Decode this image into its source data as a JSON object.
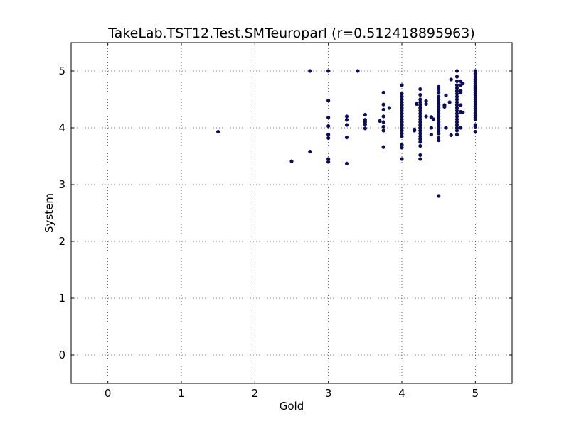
{
  "chart_data": {
    "type": "scatter",
    "title": "TakeLab.TST12.Test.SMTeuroparl (r=0.512418895963)",
    "xlabel": "Gold",
    "ylabel": "System",
    "xlim": [
      -0.5,
      5.5
    ],
    "ylim": [
      -0.5,
      5.5
    ],
    "xticks": [
      0,
      1,
      2,
      3,
      4,
      5
    ],
    "yticks": [
      0,
      1,
      2,
      3,
      4,
      5
    ],
    "xtick_labels": [
      "0",
      "1",
      "2",
      "3",
      "4",
      "5"
    ],
    "ytick_labels": [
      "0",
      "1",
      "2",
      "3",
      "4",
      "5"
    ],
    "grid": true,
    "marker_color": "#0b0b6e",
    "points": [
      [
        1.5,
        3.93
      ],
      [
        2.5,
        3.41
      ],
      [
        2.75,
        3.58
      ],
      [
        2.75,
        5.0
      ],
      [
        3.0,
        5.0
      ],
      [
        3.0,
        4.48
      ],
      [
        3.0,
        4.18
      ],
      [
        3.0,
        4.03
      ],
      [
        3.0,
        3.88
      ],
      [
        3.0,
        3.82
      ],
      [
        3.0,
        3.45
      ],
      [
        3.0,
        3.4
      ],
      [
        3.25,
        4.2
      ],
      [
        3.25,
        4.14
      ],
      [
        3.25,
        4.05
      ],
      [
        3.25,
        3.83
      ],
      [
        3.25,
        3.37
      ],
      [
        3.4,
        5.0
      ],
      [
        3.5,
        4.23
      ],
      [
        3.5,
        4.14
      ],
      [
        3.5,
        4.1
      ],
      [
        3.5,
        4.06
      ],
      [
        3.5,
        3.99
      ],
      [
        3.7,
        4.12
      ],
      [
        3.75,
        4.62
      ],
      [
        3.75,
        4.41
      ],
      [
        3.75,
        4.32
      ],
      [
        3.75,
        4.2
      ],
      [
        3.75,
        4.1
      ],
      [
        3.75,
        4.02
      ],
      [
        3.75,
        3.95
      ],
      [
        3.75,
        3.66
      ],
      [
        3.83,
        4.35
      ],
      [
        4.0,
        4.75
      ],
      [
        4.0,
        4.6
      ],
      [
        4.0,
        4.55
      ],
      [
        4.0,
        4.5
      ],
      [
        4.0,
        4.45
      ],
      [
        4.0,
        4.4
      ],
      [
        4.0,
        4.35
      ],
      [
        4.0,
        4.3
      ],
      [
        4.0,
        4.25
      ],
      [
        4.0,
        4.2
      ],
      [
        4.0,
        4.15
      ],
      [
        4.0,
        4.1
      ],
      [
        4.0,
        4.05
      ],
      [
        4.0,
        4.0
      ],
      [
        4.0,
        3.95
      ],
      [
        4.0,
        3.9
      ],
      [
        4.0,
        3.85
      ],
      [
        4.0,
        3.7
      ],
      [
        4.0,
        3.65
      ],
      [
        4.0,
        3.45
      ],
      [
        4.17,
        3.97
      ],
      [
        4.17,
        3.95
      ],
      [
        4.2,
        4.42
      ],
      [
        4.25,
        4.68
      ],
      [
        4.25,
        4.58
      ],
      [
        4.25,
        4.5
      ],
      [
        4.25,
        4.45
      ],
      [
        4.25,
        4.4
      ],
      [
        4.25,
        4.35
      ],
      [
        4.25,
        4.3
      ],
      [
        4.25,
        4.25
      ],
      [
        4.25,
        4.2
      ],
      [
        4.25,
        4.15
      ],
      [
        4.25,
        4.1
      ],
      [
        4.25,
        4.05
      ],
      [
        4.25,
        4.0
      ],
      [
        4.25,
        3.95
      ],
      [
        4.25,
        3.9
      ],
      [
        4.25,
        3.85
      ],
      [
        4.25,
        3.8
      ],
      [
        4.25,
        3.75
      ],
      [
        4.25,
        3.68
      ],
      [
        4.25,
        3.52
      ],
      [
        4.25,
        3.45
      ],
      [
        4.33,
        4.47
      ],
      [
        4.33,
        4.42
      ],
      [
        4.33,
        4.2
      ],
      [
        4.4,
        4.19
      ],
      [
        4.4,
        4.0
      ],
      [
        4.4,
        3.88
      ],
      [
        4.43,
        4.15
      ],
      [
        4.5,
        4.72
      ],
      [
        4.5,
        4.68
      ],
      [
        4.5,
        4.62
      ],
      [
        4.5,
        4.55
      ],
      [
        4.5,
        4.5
      ],
      [
        4.5,
        4.45
      ],
      [
        4.5,
        4.4
      ],
      [
        4.5,
        4.35
      ],
      [
        4.5,
        4.3
      ],
      [
        4.5,
        4.25
      ],
      [
        4.5,
        4.2
      ],
      [
        4.5,
        4.15
      ],
      [
        4.5,
        4.1
      ],
      [
        4.5,
        4.05
      ],
      [
        4.5,
        4.0
      ],
      [
        4.5,
        3.95
      ],
      [
        4.5,
        3.9
      ],
      [
        4.5,
        3.82
      ],
      [
        4.5,
        3.78
      ],
      [
        4.5,
        2.8
      ],
      [
        4.58,
        4.4
      ],
      [
        4.58,
        4.37
      ],
      [
        4.6,
        4.57
      ],
      [
        4.6,
        4.0
      ],
      [
        4.65,
        4.45
      ],
      [
        4.67,
        4.85
      ],
      [
        4.67,
        3.87
      ],
      [
        4.75,
        5.0
      ],
      [
        4.75,
        4.9
      ],
      [
        4.75,
        4.82
      ],
      [
        4.75,
        4.75
      ],
      [
        4.75,
        4.7
      ],
      [
        4.75,
        4.65
      ],
      [
        4.75,
        4.6
      ],
      [
        4.75,
        4.55
      ],
      [
        4.75,
        4.5
      ],
      [
        4.75,
        4.45
      ],
      [
        4.75,
        4.4
      ],
      [
        4.75,
        4.35
      ],
      [
        4.75,
        4.3
      ],
      [
        4.75,
        4.25
      ],
      [
        4.75,
        4.2
      ],
      [
        4.75,
        4.15
      ],
      [
        4.75,
        4.1
      ],
      [
        4.75,
        4.05
      ],
      [
        4.75,
        4.0
      ],
      [
        4.75,
        3.95
      ],
      [
        4.75,
        3.88
      ],
      [
        4.8,
        4.82
      ],
      [
        4.8,
        4.75
      ],
      [
        4.8,
        4.65
      ],
      [
        4.8,
        4.62
      ],
      [
        4.8,
        4.4
      ],
      [
        4.8,
        4.28
      ],
      [
        4.8,
        4.0
      ],
      [
        4.83,
        4.78
      ],
      [
        4.83,
        4.27
      ],
      [
        5.0,
        5.0
      ],
      [
        5.0,
        4.98
      ],
      [
        5.0,
        4.95
      ],
      [
        5.0,
        4.9
      ],
      [
        5.0,
        4.86
      ],
      [
        5.0,
        4.82
      ],
      [
        5.0,
        4.78
      ],
      [
        5.0,
        4.74
      ],
      [
        5.0,
        4.7
      ],
      [
        5.0,
        4.66
      ],
      [
        5.0,
        4.62
      ],
      [
        5.0,
        4.58
      ],
      [
        5.0,
        4.54
      ],
      [
        5.0,
        4.5
      ],
      [
        5.0,
        4.46
      ],
      [
        5.0,
        4.42
      ],
      [
        5.0,
        4.38
      ],
      [
        5.0,
        4.34
      ],
      [
        5.0,
        4.3
      ],
      [
        5.0,
        4.26
      ],
      [
        5.0,
        4.22
      ],
      [
        5.0,
        4.18
      ],
      [
        5.0,
        4.15
      ],
      [
        5.0,
        4.05
      ],
      [
        5.0,
        4.02
      ],
      [
        5.0,
        3.93
      ]
    ]
  }
}
